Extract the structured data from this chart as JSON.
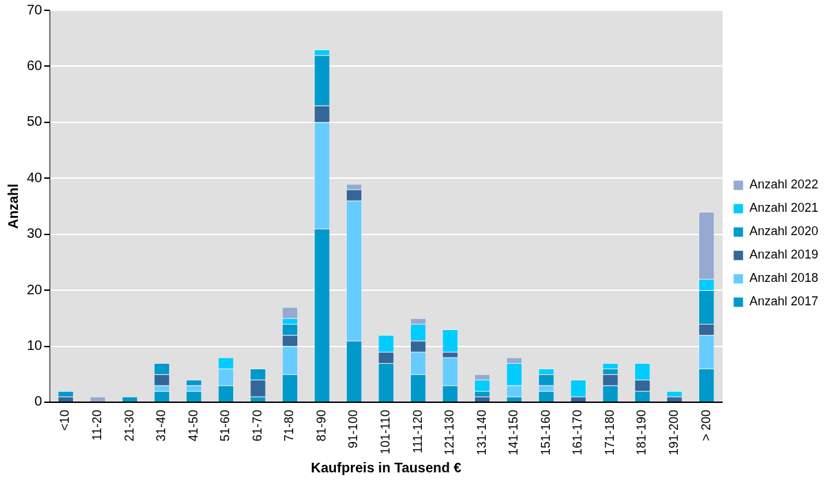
{
  "chart_data": {
    "type": "bar",
    "stacked": true,
    "xlabel": "Kaufpreis in Tausend €",
    "ylabel": "Anzahl",
    "categories": [
      "<10",
      "11-20",
      "21-30",
      "31-40",
      "41-50",
      "51-60",
      "61-70",
      "71-80",
      "81-90",
      "91-100",
      "101-110",
      "111-120",
      "121-130",
      "131-140",
      "141-150",
      "151-160",
      "161-170",
      "171-180",
      "181-190",
      "191-200",
      "> 200"
    ],
    "series": [
      {
        "name": "Anzahl 2017",
        "color": "#0099cc",
        "values": [
          0,
          0,
          1,
          2,
          2,
          3,
          1,
          5,
          31,
          11,
          7,
          5,
          3,
          0,
          1,
          2,
          0,
          3,
          2,
          0,
          6
        ]
      },
      {
        "name": "Anzahl 2018",
        "color": "#66ccff",
        "values": [
          0,
          0,
          0,
          1,
          1,
          3,
          0,
          5,
          19,
          25,
          0,
          4,
          5,
          0,
          2,
          1,
          0,
          0,
          0,
          0,
          6
        ]
      },
      {
        "name": "Anzahl 2019",
        "color": "#336699",
        "values": [
          1,
          0,
          0,
          2,
          0,
          0,
          3,
          2,
          3,
          2,
          2,
          2,
          1,
          1,
          0,
          0,
          1,
          2,
          2,
          1,
          2
        ]
      },
      {
        "name": "Anzahl 2020",
        "color": "#0099cc",
        "values": [
          1,
          0,
          0,
          2,
          1,
          0,
          2,
          2,
          9,
          0,
          0,
          0,
          0,
          1,
          0,
          2,
          0,
          1,
          0,
          0,
          6
        ]
      },
      {
        "name": "Anzahl 2021",
        "color": "#00ccff",
        "values": [
          0,
          0,
          0,
          0,
          0,
          2,
          0,
          1,
          1,
          0,
          3,
          3,
          4,
          2,
          4,
          1,
          3,
          1,
          3,
          1,
          2
        ]
      },
      {
        "name": "Anzahl 2022",
        "color": "#95a9d1",
        "values": [
          0,
          1,
          0,
          0,
          0,
          0,
          0,
          2,
          0,
          1,
          0,
          1,
          0,
          1,
          1,
          0,
          0,
          0,
          0,
          0,
          12
        ]
      }
    ],
    "ylim": [
      0,
      70
    ],
    "yticks": [
      0,
      10,
      20,
      30,
      40,
      50,
      60,
      70
    ],
    "grid": "y",
    "legend": "right"
  }
}
